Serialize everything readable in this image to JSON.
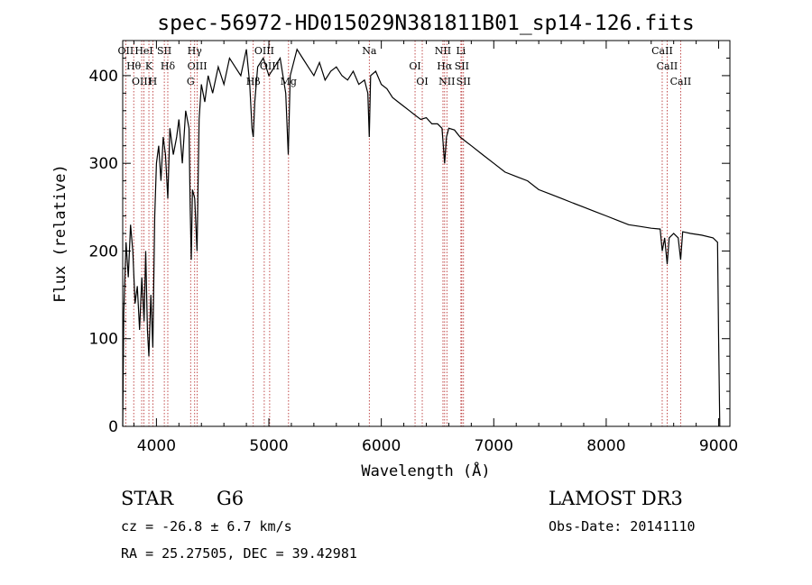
{
  "chart_data": {
    "type": "line",
    "title": "spec-56972-HD015029N381811B01_sp14-126.fits",
    "xlabel": "Wavelength (Å)",
    "ylabel": "Flux (relative)",
    "xlim": [
      3700,
      9100
    ],
    "ylim": [
      0,
      440
    ],
    "x_ticks": [
      4000,
      5000,
      6000,
      7000,
      8000,
      9000
    ],
    "y_ticks": [
      0,
      100,
      200,
      300,
      400
    ],
    "series": [
      {
        "name": "spectrum",
        "x": [
          3700,
          3710,
          3730,
          3750,
          3770,
          3790,
          3810,
          3830,
          3850,
          3870,
          3890,
          3905,
          3920,
          3933,
          3950,
          3968,
          3985,
          4000,
          4020,
          4040,
          4060,
          4080,
          4101,
          4120,
          4150,
          4180,
          4200,
          4230,
          4260,
          4290,
          4300,
          4310,
          4320,
          4340,
          4361,
          4380,
          4400,
          4430,
          4460,
          4500,
          4550,
          4600,
          4650,
          4700,
          4750,
          4800,
          4830,
          4850,
          4861,
          4875,
          4900,
          4950,
          5000,
          5050,
          5100,
          5150,
          5172,
          5190,
          5250,
          5300,
          5350,
          5400,
          5450,
          5500,
          5550,
          5600,
          5650,
          5700,
          5750,
          5800,
          5850,
          5880,
          5893,
          5905,
          5950,
          6000,
          6050,
          6100,
          6150,
          6200,
          6250,
          6300,
          6350,
          6400,
          6450,
          6500,
          6540,
          6563,
          6580,
          6600,
          6650,
          6700,
          6750,
          6800,
          6900,
          7000,
          7100,
          7200,
          7300,
          7400,
          7500,
          7600,
          7700,
          7800,
          7900,
          8000,
          8100,
          8200,
          8300,
          8400,
          8480,
          8498,
          8520,
          8542,
          8560,
          8600,
          8640,
          8662,
          8680,
          8750,
          8850,
          8950,
          8990,
          9000,
          9010
        ],
        "y": [
          0,
          130,
          210,
          170,
          230,
          200,
          140,
          160,
          110,
          170,
          120,
          200,
          110,
          80,
          150,
          90,
          240,
          300,
          320,
          280,
          330,
          310,
          260,
          340,
          310,
          330,
          350,
          300,
          360,
          340,
          250,
          190,
          270,
          260,
          200,
          350,
          390,
          370,
          400,
          380,
          410,
          390,
          420,
          410,
          400,
          430,
          390,
          340,
          330,
          370,
          410,
          420,
          400,
          410,
          420,
          380,
          310,
          400,
          430,
          420,
          410,
          400,
          415,
          395,
          405,
          410,
          400,
          395,
          405,
          390,
          395,
          380,
          330,
          400,
          405,
          390,
          385,
          375,
          370,
          365,
          360,
          355,
          350,
          352,
          345,
          345,
          340,
          300,
          330,
          340,
          338,
          330,
          325,
          320,
          310,
          300,
          290,
          285,
          280,
          270,
          265,
          260,
          255,
          250,
          245,
          240,
          235,
          230,
          228,
          226,
          225,
          200,
          215,
          185,
          215,
          220,
          215,
          190,
          222,
          220,
          218,
          215,
          210,
          100,
          0
        ]
      }
    ],
    "line_markers": [
      {
        "label": "OII",
        "wavelength": 3727
      },
      {
        "label": "Hθ",
        "wavelength": 3798
      },
      {
        "label": "OIII",
        "wavelength": 3869
      },
      {
        "label": "HeI",
        "wavelength": 3889
      },
      {
        "label": "K",
        "wavelength": 3933
      },
      {
        "label": "H",
        "wavelength": 3968
      },
      {
        "label": "SII",
        "wavelength": 4070
      },
      {
        "label": "Hδ",
        "wavelength": 4101
      },
      {
        "label": "G",
        "wavelength": 4304
      },
      {
        "label": "Hγ",
        "wavelength": 4340
      },
      {
        "label": "OIII",
        "wavelength": 4363
      },
      {
        "label": "Hβ",
        "wavelength": 4861
      },
      {
        "label": "OIII",
        "wavelength": 4959
      },
      {
        "label": "OIII",
        "wavelength": 5007
      },
      {
        "label": "Mg",
        "wavelength": 5175
      },
      {
        "label": "Na",
        "wavelength": 5893
      },
      {
        "label": "OI",
        "wavelength": 6300
      },
      {
        "label": "OI",
        "wavelength": 6364
      },
      {
        "label": "NII",
        "wavelength": 6548
      },
      {
        "label": "Hα",
        "wavelength": 6563
      },
      {
        "label": "NII",
        "wavelength": 6583
      },
      {
        "label": "Li",
        "wavelength": 6708
      },
      {
        "label": "SII",
        "wavelength": 6716
      },
      {
        "label": "SII",
        "wavelength": 6731
      },
      {
        "label": "CaII",
        "wavelength": 8498
      },
      {
        "label": "CaII",
        "wavelength": 8542
      },
      {
        "label": "CaII",
        "wavelength": 8662
      }
    ]
  },
  "info": {
    "object_class": "STAR",
    "subclass": "G6",
    "survey": "LAMOST DR3",
    "cz": "cz = -26.8 ± 6.7 km/s",
    "obs_date": "Obs-Date: 20141110",
    "coords": "RA =  25.27505, DEC =  39.42981"
  },
  "colors": {
    "line_marker": "#b22222",
    "spectrum": "#000000",
    "axes": "#000000",
    "background": "#ffffff"
  }
}
